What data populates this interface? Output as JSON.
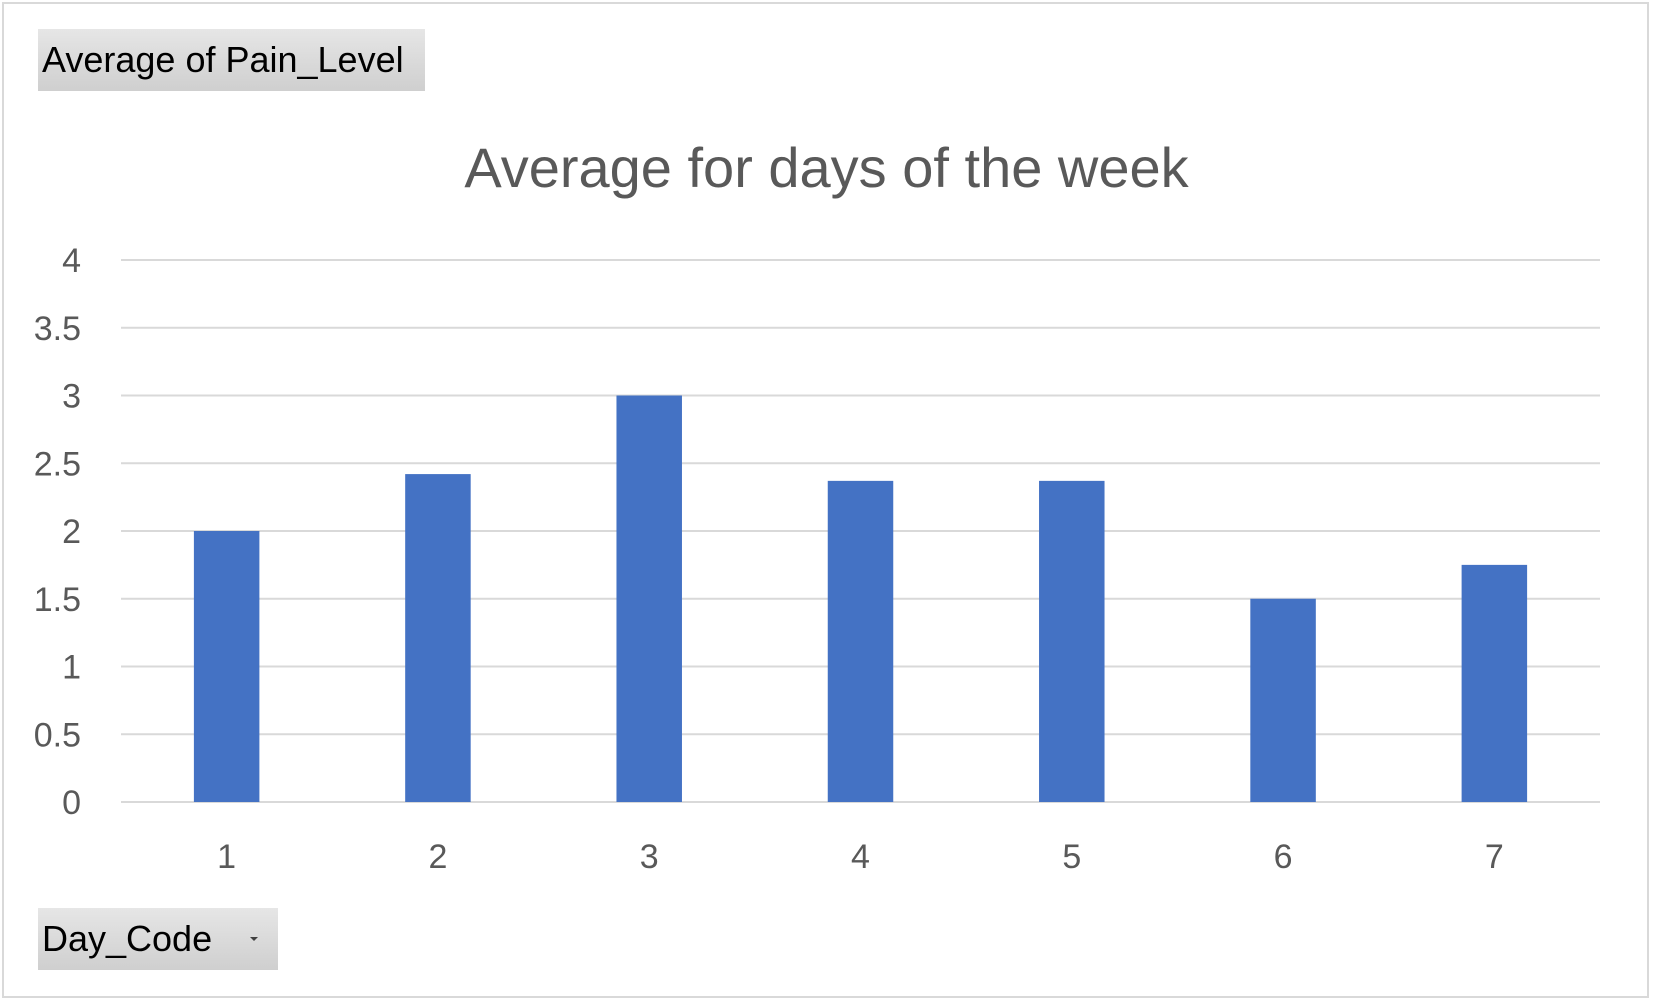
{
  "pivot": {
    "value_field_label": "Average  of Pain_Level",
    "axis_field_label": "Day_Code"
  },
  "chart_data": {
    "type": "bar",
    "title": "Average for days of the week",
    "categories": [
      "1",
      "2",
      "3",
      "4",
      "5",
      "6",
      "7"
    ],
    "values": [
      2.0,
      2.42,
      3.0,
      2.37,
      2.37,
      1.5,
      1.75
    ],
    "ylim": [
      0,
      4
    ],
    "yticks": [
      "0",
      "0.5",
      "1",
      "1.5",
      "2",
      "2.5",
      "3",
      "3.5",
      "4"
    ],
    "xlabel": "",
    "ylabel": "",
    "grid": true,
    "legend": "none",
    "bar_color": "#4472C4",
    "grid_color": "#d9d9d9"
  }
}
